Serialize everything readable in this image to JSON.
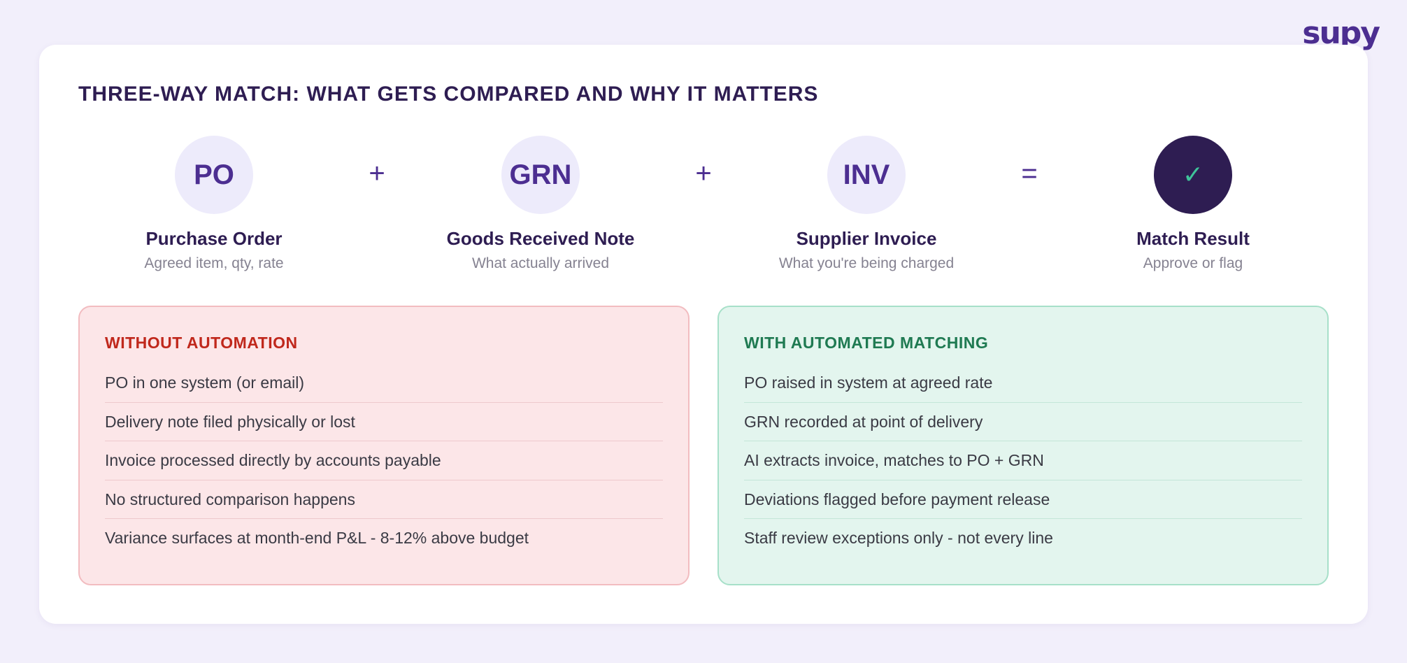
{
  "brand": {
    "logo_text": "supy"
  },
  "title": "THREE-WAY MATCH: WHAT GETS COMPARED AND WHY IT MATTERS",
  "flow": {
    "steps": [
      {
        "code": "PO",
        "title": "Purchase Order",
        "subtitle": "Agreed item, qty, rate"
      },
      {
        "code": "GRN",
        "title": "Goods Received Note",
        "subtitle": "What actually arrived"
      },
      {
        "code": "INV",
        "title": "Supplier Invoice",
        "subtitle": "What you're being charged"
      },
      {
        "code": "✓",
        "title": "Match Result",
        "subtitle": "Approve or flag"
      }
    ],
    "operators": [
      "+",
      "+",
      "="
    ]
  },
  "without_automation": {
    "heading": "WITHOUT AUTOMATION",
    "items": [
      "PO in one system (or email)",
      "Delivery note filed physically or lost",
      "Invoice processed directly by accounts payable",
      "No structured comparison happens",
      "Variance surfaces at month-end P&L - 8-12% above budget"
    ]
  },
  "with_automation": {
    "heading": "WITH AUTOMATED MATCHING",
    "items": [
      "PO raised in system at agreed rate",
      "GRN recorded at point of delivery",
      "AI extracts invoice, matches to PO + GRN",
      "Deviations flagged before payment release",
      "Staff review exceptions only - not every line"
    ]
  },
  "colors": {
    "background": "#f2effb",
    "primary": "#4c2e91",
    "dark": "#2e1d52",
    "check": "#3fc49a",
    "bad_text": "#c0281c",
    "bad_bg": "#fce6e8",
    "good_text": "#1f7a52",
    "good_bg": "#e3f5ee"
  }
}
